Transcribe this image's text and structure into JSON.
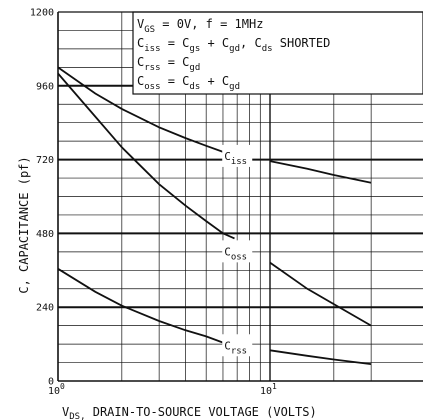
{
  "chart_data": {
    "type": "line",
    "x_scale": "log",
    "xlim": [
      1,
      30
    ],
    "ylim": [
      0,
      1200
    ],
    "grid": true,
    "ylabel": "C, CAPACITANCE (pf)",
    "xlabel_main": "V",
    "xlabel_sub": "DS,",
    "xlabel_rest": " DRAIN-TO-SOURCE VOLTAGE (VOLTS)",
    "y_ticks": [
      "0",
      "240",
      "480",
      "720",
      "960",
      "1200"
    ],
    "y_tick_values": [
      0,
      240,
      480,
      720,
      960,
      1200
    ],
    "x_ticks": [
      {
        "value": 1,
        "base": "10",
        "exp": "0"
      },
      {
        "value": 10,
        "base": "10",
        "exp": "1"
      }
    ],
    "annotation_lines": [
      {
        "parts": [
          {
            "t": "V"
          },
          {
            "t": "GS",
            "sub": true
          },
          {
            "t": " = 0V, f = 1MHz"
          }
        ]
      },
      {
        "parts": [
          {
            "t": "C"
          },
          {
            "t": "iss",
            "sub": true
          },
          {
            "t": " = C"
          },
          {
            "t": "gs",
            "sub": true
          },
          {
            "t": " + C"
          },
          {
            "t": "gd",
            "sub": true
          },
          {
            "t": ", C"
          },
          {
            "t": "ds",
            "sub": true
          },
          {
            "t": " SHORTED"
          }
        ]
      },
      {
        "parts": [
          {
            "t": "C"
          },
          {
            "t": "rss",
            "sub": true
          },
          {
            "t": " = C"
          },
          {
            "t": "gd",
            "sub": true
          }
        ]
      },
      {
        "parts": [
          {
            "t": "C"
          },
          {
            "t": "oss",
            "sub": true
          },
          {
            "t": " = C"
          },
          {
            "t": "ds",
            "sub": true
          },
          {
            "t": " + C"
          },
          {
            "t": "gd",
            "sub": true
          }
        ]
      }
    ],
    "series": [
      {
        "label_main": "C",
        "label_sub": "iss",
        "label_at": 8.8,
        "x": [
          1,
          1.5,
          2,
          3,
          4,
          5,
          6,
          7,
          10,
          15,
          20,
          30
        ],
        "y": [
          1020,
          935,
          885,
          825,
          790,
          765,
          745,
          735,
          715,
          690,
          670,
          645
        ]
      },
      {
        "label_main": "C",
        "label_sub": "oss",
        "label_at": 8.8,
        "x": [
          1,
          1.5,
          2,
          3,
          4,
          5,
          6,
          7,
          10,
          15,
          20,
          30
        ],
        "y": [
          1000,
          860,
          760,
          640,
          570,
          520,
          480,
          460,
          385,
          300,
          250,
          180
        ]
      },
      {
        "label_main": "C",
        "label_sub": "rss",
        "label_at": 8.8,
        "x": [
          1,
          1.5,
          2,
          3,
          4,
          5,
          6,
          7,
          10,
          15,
          20,
          30
        ],
        "y": [
          365,
          290,
          245,
          195,
          165,
          145,
          125,
          118,
          100,
          82,
          70,
          55
        ]
      }
    ]
  }
}
